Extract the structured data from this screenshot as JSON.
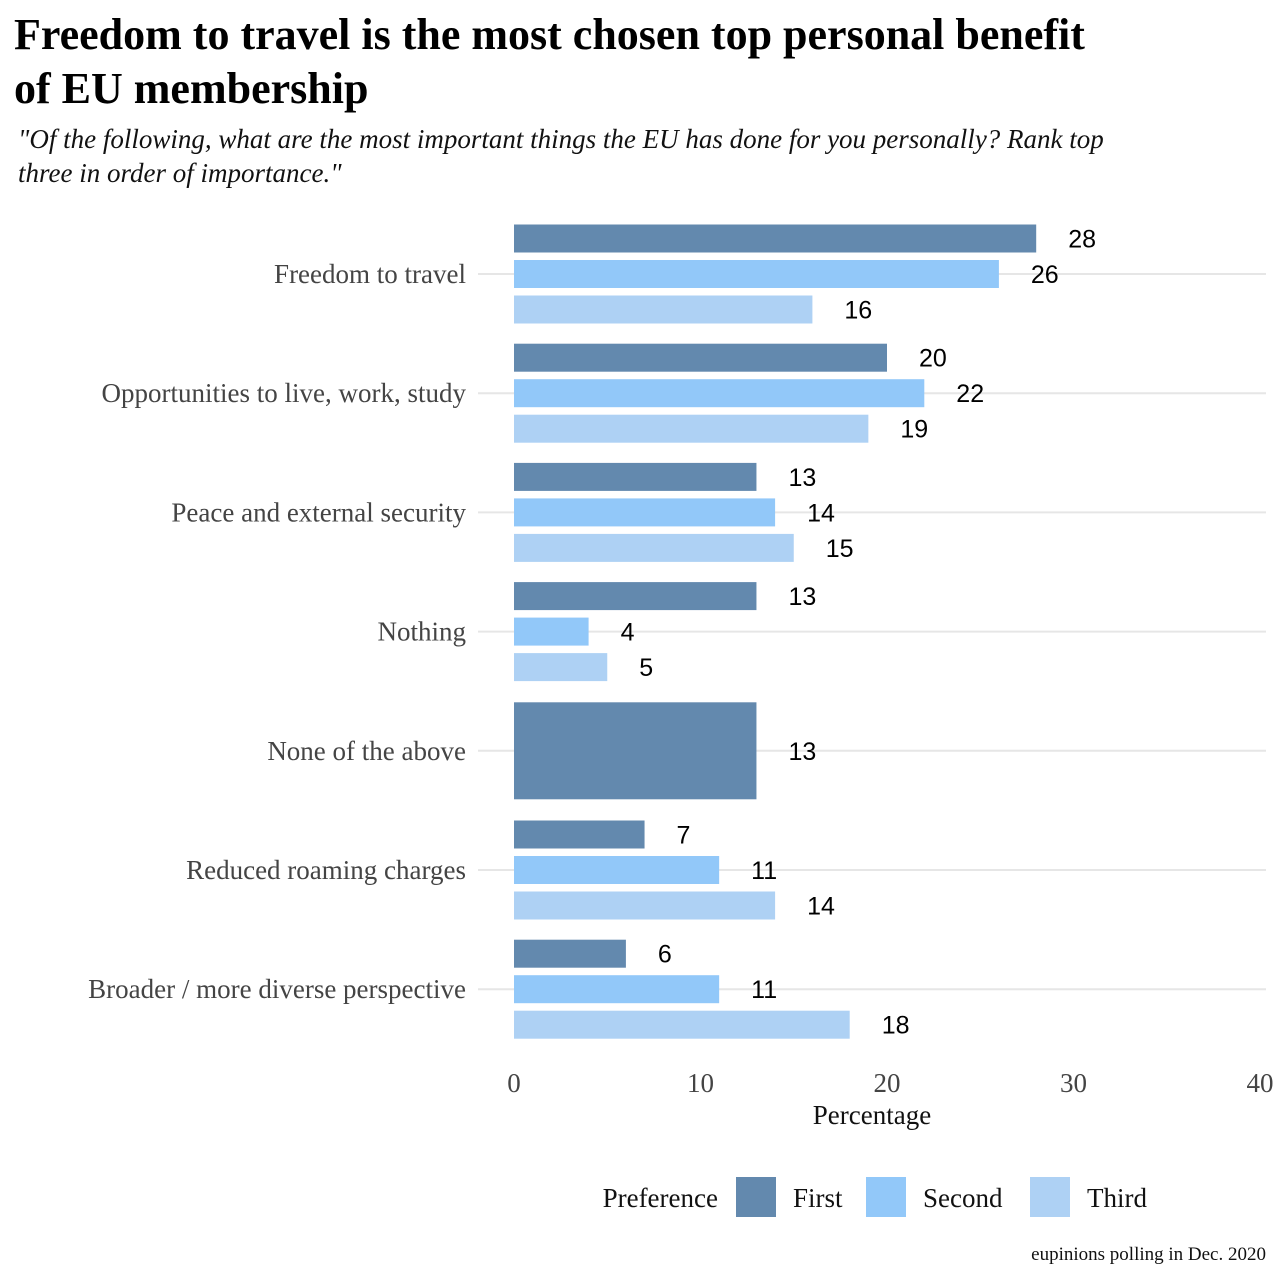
{
  "chart_data": {
    "type": "bar",
    "orientation": "horizontal",
    "title": "Freedom to travel is the most chosen top personal benefit\n of EU membership",
    "subtitle": "\"Of the following, what are the most important things the EU has done for you personally? Rank top\n three in order of importance.\"",
    "xlabel": "Percentage",
    "ylabel": "",
    "xlim": [
      0,
      40
    ],
    "x_ticks": [
      "0",
      "10",
      "20",
      "30",
      "40"
    ],
    "grid": "horizontal lines at categories",
    "legend_title": "Preference",
    "legend_position": "bottom",
    "categories": [
      "Freedom to travel",
      "Opportunities to live, work, study",
      "Peace and external security",
      "Nothing",
      "None of the above",
      "Reduced roaming charges",
      "Broader / more diverse perspective"
    ],
    "series": [
      {
        "name": "First",
        "color": "#6389ae",
        "values": [
          28,
          20,
          13,
          13,
          13,
          7,
          6
        ]
      },
      {
        "name": "Second",
        "color": "#92c8f9",
        "values": [
          26,
          22,
          14,
          4,
          null,
          11,
          11
        ]
      },
      {
        "name": "Third",
        "color": "#aed1f4",
        "values": [
          16,
          19,
          15,
          5,
          null,
          14,
          18
        ]
      }
    ],
    "caption": "eupinions polling in Dec. 2020"
  }
}
